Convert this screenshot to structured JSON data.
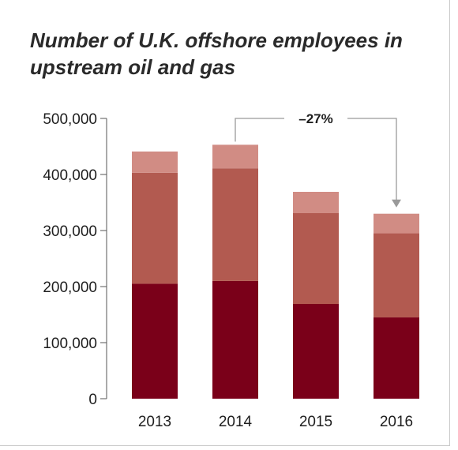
{
  "chart_data": {
    "type": "bar",
    "stacked": true,
    "title": "Number of U.K. offshore employees in upstream oil and gas",
    "categories": [
      "2013",
      "2014",
      "2015",
      "2016"
    ],
    "series": [
      {
        "values": [
          205000,
          210000,
          169000,
          145000
        ],
        "color": "#7a0019"
      },
      {
        "values": [
          198000,
          201000,
          162000,
          150000
        ],
        "color": "#b25a50"
      },
      {
        "values": [
          38000,
          42000,
          38000,
          35000
        ],
        "color": "#d18c84"
      }
    ],
    "ylim": [
      0,
      500000
    ],
    "yticks": [
      0,
      100000,
      200000,
      300000,
      400000,
      500000
    ],
    "ytick_labels": [
      "0",
      "100,000",
      "200,000",
      "300,000",
      "400,000",
      "500,000"
    ],
    "grid": false,
    "annotation": {
      "text": "–27%",
      "from": "2014",
      "to": "2016"
    }
  }
}
